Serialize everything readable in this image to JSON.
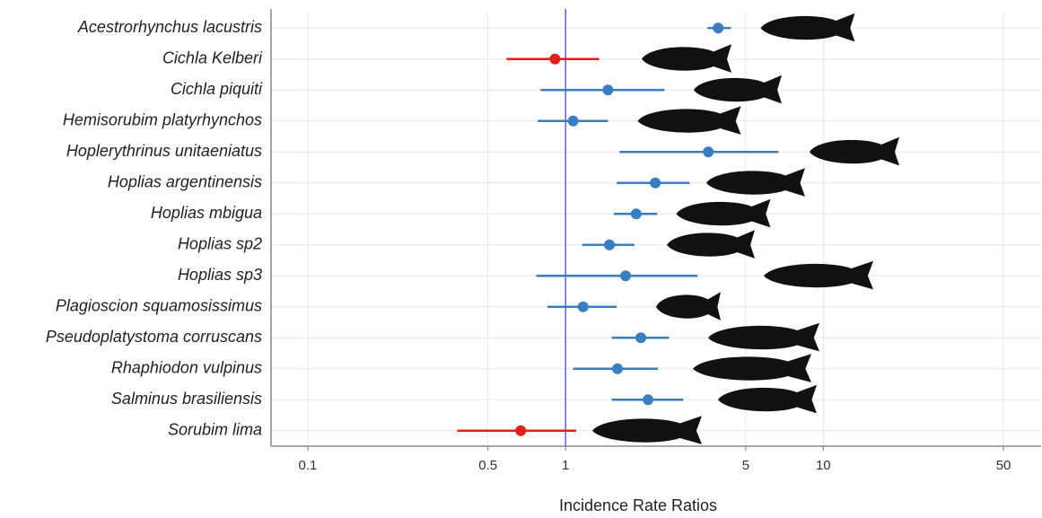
{
  "chart_data": {
    "type": "forest",
    "x_label": "Incidence Rate Ratios",
    "categories": [
      "Acestrorhynchus lacustris",
      "Cichla Kelberi",
      "Cichla piquiti",
      "Hemisorubim platyrhynchos",
      "Hoplerythrinus unitaeniatus",
      "Hoplias argentinensis",
      "Hoplias mbigua",
      "Hoplias sp2",
      "Hoplias sp3",
      "Plagioscion squamosissimus",
      "Pseudoplatystoma corruscans",
      "Rhaphiodon vulpinus",
      "Salminus brasiliensis",
      "Sorubim lima"
    ],
    "values": [
      3.91,
      0.91,
      1.46,
      1.07,
      3.58,
      2.23,
      1.88,
      1.48,
      1.71,
      1.17,
      1.96,
      1.59,
      2.09,
      0.67
    ],
    "ci_low": [
      3.55,
      0.59,
      0.8,
      0.78,
      1.62,
      1.58,
      1.54,
      1.16,
      0.77,
      0.85,
      1.51,
      1.07,
      1.51,
      0.38
    ],
    "ci_high": [
      4.38,
      1.35,
      2.42,
      1.46,
      6.7,
      3.03,
      2.27,
      1.85,
      3.25,
      1.58,
      2.52,
      2.28,
      2.86,
      1.1
    ],
    "colors": [
      "#3a7dc0",
      "#e0201b",
      "#3a7dc0",
      "#3a7dc0",
      "#3a7dc0",
      "#3a7dc0",
      "#3a7dc0",
      "#3a7dc0",
      "#3a7dc0",
      "#3a7dc0",
      "#3a7dc0",
      "#3a7dc0",
      "#3a7dc0",
      "#e0201b"
    ],
    "reference_line": 1,
    "reference_color": "#5b5be8",
    "x_scale": "log",
    "xlim": [
      0.072,
      70
    ],
    "xticks": [
      0.1,
      0.5,
      1,
      5,
      10,
      50
    ],
    "grid": true
  }
}
